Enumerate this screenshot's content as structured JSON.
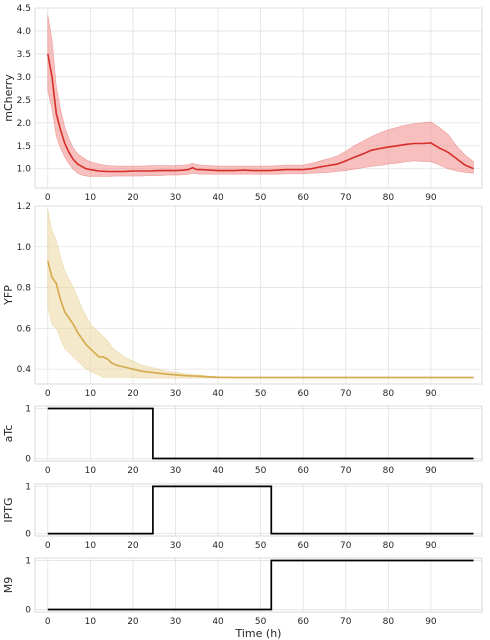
{
  "chart_data": [
    {
      "type": "area",
      "ylabel": "mCherry",
      "xlabel": "",
      "xlim": [
        -3,
        102
      ],
      "ylim": [
        0.58,
        4.5
      ],
      "xticks": [
        0,
        10,
        20,
        30,
        40,
        50,
        60,
        70,
        80,
        90
      ],
      "yticks": [
        1.0,
        1.5,
        2.0,
        2.5,
        3.0,
        3.5,
        4.0,
        4.5
      ],
      "ytick_labels": [
        "1.0",
        "1.5",
        "2.0",
        "2.5",
        "3.0",
        "3.5",
        "4.0",
        "4.5"
      ],
      "grid": true,
      "color": "#d62f2a",
      "fill_color": "#f08a88",
      "series": [
        {
          "x": [
            0,
            1,
            2,
            3,
            4,
            5,
            6,
            7,
            8,
            9,
            10,
            12,
            14,
            16,
            18,
            20,
            22,
            24,
            26,
            28,
            30,
            32,
            33,
            34,
            35,
            36,
            38,
            40,
            42,
            44,
            46,
            48,
            50,
            52,
            54,
            56,
            58,
            60,
            62,
            64,
            66,
            68,
            70,
            72,
            74,
            76,
            78,
            80,
            82,
            84,
            86,
            88,
            90,
            92,
            94,
            96,
            98,
            100
          ],
          "mean": [
            3.5,
            3.0,
            2.2,
            1.85,
            1.55,
            1.35,
            1.2,
            1.1,
            1.05,
            1.0,
            0.98,
            0.95,
            0.94,
            0.94,
            0.94,
            0.95,
            0.95,
            0.95,
            0.96,
            0.96,
            0.96,
            0.97,
            0.98,
            1.02,
            0.98,
            0.98,
            0.97,
            0.96,
            0.96,
            0.96,
            0.97,
            0.96,
            0.96,
            0.96,
            0.97,
            0.98,
            0.98,
            0.98,
            1.0,
            1.04,
            1.07,
            1.1,
            1.17,
            1.25,
            1.32,
            1.4,
            1.44,
            1.47,
            1.5,
            1.53,
            1.55,
            1.55,
            1.56,
            1.45,
            1.36,
            1.22,
            1.08,
            1.0
          ],
          "lower": [
            2.7,
            2.3,
            1.7,
            1.45,
            1.25,
            1.1,
            0.98,
            0.9,
            0.86,
            0.84,
            0.83,
            0.83,
            0.83,
            0.84,
            0.84,
            0.84,
            0.84,
            0.85,
            0.85,
            0.86,
            0.86,
            0.87,
            0.88,
            0.9,
            0.89,
            0.88,
            0.88,
            0.88,
            0.88,
            0.88,
            0.88,
            0.88,
            0.88,
            0.88,
            0.88,
            0.89,
            0.89,
            0.89,
            0.9,
            0.91,
            0.92,
            0.94,
            0.96,
            0.99,
            1.02,
            1.05,
            1.07,
            1.1,
            1.12,
            1.15,
            1.17,
            1.16,
            1.15,
            1.08,
            1.0,
            0.95,
            0.92,
            0.9
          ],
          "upper": [
            4.35,
            3.8,
            2.8,
            2.3,
            1.9,
            1.65,
            1.45,
            1.33,
            1.26,
            1.2,
            1.15,
            1.1,
            1.07,
            1.06,
            1.06,
            1.06,
            1.06,
            1.07,
            1.07,
            1.07,
            1.07,
            1.08,
            1.09,
            1.12,
            1.09,
            1.08,
            1.07,
            1.06,
            1.06,
            1.06,
            1.06,
            1.06,
            1.06,
            1.06,
            1.07,
            1.08,
            1.08,
            1.08,
            1.12,
            1.17,
            1.22,
            1.28,
            1.38,
            1.5,
            1.6,
            1.7,
            1.78,
            1.85,
            1.9,
            1.95,
            1.98,
            2.0,
            2.02,
            1.9,
            1.75,
            1.5,
            1.3,
            1.15
          ]
        }
      ]
    },
    {
      "type": "area",
      "ylabel": "YFP",
      "xlabel": "",
      "xlim": [
        -3,
        102
      ],
      "ylim": [
        0.327,
        1.2
      ],
      "xticks": [
        0,
        10,
        20,
        30,
        40,
        50,
        60,
        70,
        80,
        90
      ],
      "yticks": [
        0.4,
        0.6,
        0.8,
        1.0,
        1.2
      ],
      "ytick_labels": [
        "0.4",
        "0.6",
        "0.8",
        "1.0",
        "1.2"
      ],
      "grid": true,
      "color": "#d4a94a",
      "fill_color": "#ecd7a2",
      "series": [
        {
          "x": [
            0,
            1,
            2,
            3,
            4,
            5,
            6,
            7,
            8,
            9,
            10,
            11,
            12,
            13,
            14,
            15,
            16,
            18,
            20,
            22,
            24,
            26,
            28,
            30,
            32,
            34,
            36,
            38,
            40,
            45,
            50,
            60,
            70,
            80,
            90,
            100
          ],
          "mean": [
            0.93,
            0.85,
            0.82,
            0.74,
            0.68,
            0.65,
            0.62,
            0.58,
            0.55,
            0.52,
            0.5,
            0.48,
            0.46,
            0.46,
            0.45,
            0.43,
            0.42,
            0.41,
            0.4,
            0.39,
            0.385,
            0.38,
            0.375,
            0.372,
            0.368,
            0.366,
            0.365,
            0.362,
            0.36,
            0.359,
            0.359,
            0.359,
            0.359,
            0.359,
            0.359,
            0.359
          ],
          "lower": [
            0.7,
            0.62,
            0.6,
            0.55,
            0.5,
            0.48,
            0.46,
            0.44,
            0.42,
            0.4,
            0.39,
            0.38,
            0.37,
            0.36,
            0.36,
            0.36,
            0.36,
            0.36,
            0.358,
            0.357,
            0.356,
            0.356,
            0.356,
            0.356,
            0.356,
            0.356,
            0.356,
            0.356,
            0.356,
            0.356,
            0.356,
            0.356,
            0.356,
            0.356,
            0.356,
            0.356
          ],
          "upper": [
            1.18,
            1.08,
            1.03,
            0.95,
            0.88,
            0.84,
            0.8,
            0.75,
            0.7,
            0.66,
            0.62,
            0.6,
            0.58,
            0.56,
            0.54,
            0.51,
            0.49,
            0.46,
            0.44,
            0.42,
            0.41,
            0.4,
            0.39,
            0.385,
            0.378,
            0.373,
            0.37,
            0.366,
            0.363,
            0.362,
            0.362,
            0.362,
            0.362,
            0.362,
            0.362,
            0.362
          ]
        }
      ]
    },
    {
      "type": "line",
      "ylabel": "aTc",
      "xlabel": "",
      "xlim": [
        -3,
        102
      ],
      "ylim": [
        -0.05,
        1.05
      ],
      "xticks": [
        0,
        10,
        20,
        30,
        40,
        50,
        60,
        70,
        80,
        90
      ],
      "yticks": [
        0,
        1
      ],
      "ytick_labels": [
        "0",
        "1"
      ],
      "grid": true,
      "color": "#000000",
      "series": [
        {
          "step": true,
          "x": [
            0,
            24.7,
            24.7,
            100
          ],
          "y": [
            1,
            1,
            0,
            0
          ]
        }
      ]
    },
    {
      "type": "line",
      "ylabel": "IPTG",
      "xlabel": "",
      "xlim": [
        -3,
        102
      ],
      "ylim": [
        -0.05,
        1.05
      ],
      "xticks": [
        0,
        10,
        20,
        30,
        40,
        50,
        60,
        70,
        80,
        90
      ],
      "yticks": [
        0,
        1
      ],
      "ytick_labels": [
        "0",
        "1"
      ],
      "grid": true,
      "color": "#000000",
      "series": [
        {
          "step": true,
          "x": [
            0,
            24.7,
            24.7,
            52.5,
            52.5,
            100
          ],
          "y": [
            0,
            0,
            1,
            1,
            0,
            0
          ]
        }
      ]
    },
    {
      "type": "line",
      "ylabel": "M9",
      "xlabel": "Time (h)",
      "xlim": [
        -3,
        102
      ],
      "ylim": [
        -0.05,
        1.05
      ],
      "xticks": [
        0,
        10,
        20,
        30,
        40,
        50,
        60,
        70,
        80,
        90
      ],
      "yticks": [
        0,
        1
      ],
      "ytick_labels": [
        "0",
        "1"
      ],
      "grid": true,
      "color": "#000000",
      "series": [
        {
          "step": true,
          "x": [
            0,
            52.5,
            52.5,
            100
          ],
          "y": [
            0,
            0,
            1,
            1
          ]
        }
      ]
    }
  ]
}
